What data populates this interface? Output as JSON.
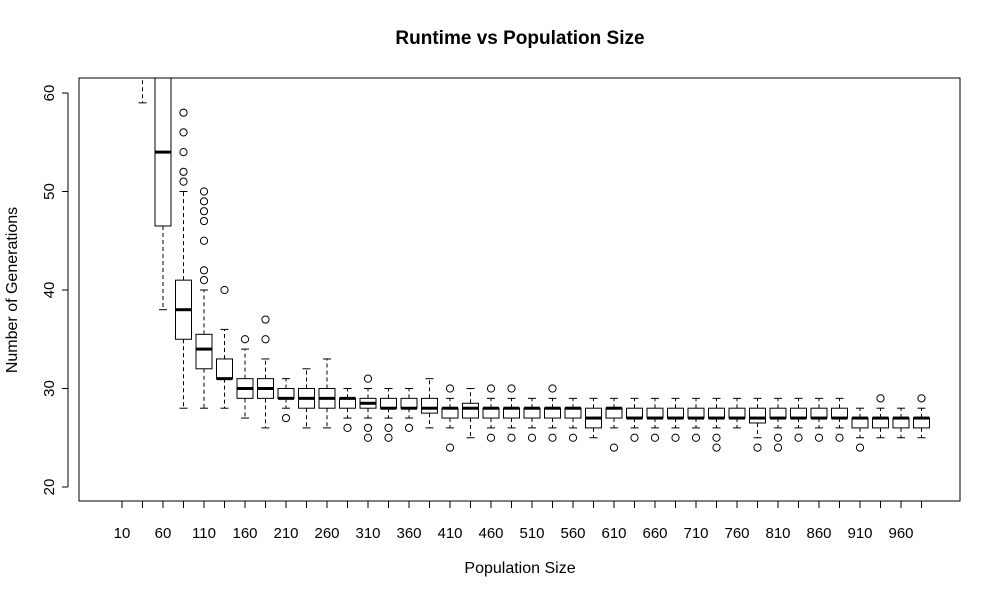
{
  "chart_data": {
    "type": "boxplot",
    "title": "Runtime vs Population Size",
    "xlabel": "Population Size",
    "ylabel": "Number of Generations",
    "ylim": [
      19.5,
      61.5
    ],
    "y_ticks": [
      20,
      30,
      40,
      50,
      60
    ],
    "x_tick_labels": [
      "10",
      "60",
      "110",
      "160",
      "210",
      "260",
      "310",
      "360",
      "410",
      "460",
      "510",
      "560",
      "610",
      "660",
      "710",
      "760",
      "810",
      "860",
      "910",
      "960"
    ],
    "grid": false,
    "categories": [
      10,
      35,
      60,
      85,
      110,
      135,
      160,
      185,
      210,
      235,
      260,
      285,
      310,
      335,
      360,
      385,
      410,
      435,
      460,
      485,
      510,
      535,
      560,
      585,
      610,
      635,
      660,
      685,
      710,
      735,
      760,
      785,
      810,
      835,
      860,
      885,
      910,
      935,
      960,
      985
    ],
    "boxes": [
      null,
      {
        "whisker_low": 59,
        "q1": 62,
        "median": 62,
        "q3": 62,
        "whisker_high": 62,
        "outliers": []
      },
      {
        "whisker_low": 38,
        "q1": 46.5,
        "median": 54,
        "q3": 62,
        "whisker_high": 62,
        "outliers": []
      },
      {
        "whisker_low": 28,
        "q1": 35,
        "median": 38,
        "q3": 41,
        "whisker_high": 50,
        "outliers": [
          51,
          52,
          54,
          56,
          58
        ]
      },
      {
        "whisker_low": 28,
        "q1": 32,
        "median": 34,
        "q3": 35.5,
        "whisker_high": 40,
        "outliers": [
          41,
          42,
          45,
          47,
          48,
          49,
          50
        ]
      },
      {
        "whisker_low": 28,
        "q1": 31,
        "median": 31,
        "q3": 33,
        "whisker_high": 36,
        "outliers": [
          40
        ]
      },
      {
        "whisker_low": 27,
        "q1": 29,
        "median": 30,
        "q3": 31,
        "whisker_high": 34,
        "outliers": [
          35
        ]
      },
      {
        "whisker_low": 26,
        "q1": 29,
        "median": 30,
        "q3": 31,
        "whisker_high": 33,
        "outliers": [
          35,
          37
        ]
      },
      {
        "whisker_low": 28,
        "q1": 29,
        "median": 29,
        "q3": 30,
        "whisker_high": 31,
        "outliers": [
          27
        ]
      },
      {
        "whisker_low": 26,
        "q1": 28,
        "median": 29,
        "q3": 30,
        "whisker_high": 32,
        "outliers": []
      },
      {
        "whisker_low": 26,
        "q1": 28,
        "median": 29,
        "q3": 30,
        "whisker_high": 33,
        "outliers": []
      },
      {
        "whisker_low": 27,
        "q1": 28,
        "median": 29,
        "q3": 29,
        "whisker_high": 30,
        "outliers": [
          26
        ]
      },
      {
        "whisker_low": 27,
        "q1": 28,
        "median": 28.5,
        "q3": 29,
        "whisker_high": 30,
        "outliers": [
          26,
          25,
          31
        ]
      },
      {
        "whisker_low": 27,
        "q1": 28,
        "median": 28,
        "q3": 29,
        "whisker_high": 30,
        "outliers": [
          26,
          25
        ]
      },
      {
        "whisker_low": 27,
        "q1": 28,
        "median": 28,
        "q3": 29,
        "whisker_high": 30,
        "outliers": [
          26
        ]
      },
      {
        "whisker_low": 26,
        "q1": 27.5,
        "median": 28,
        "q3": 29,
        "whisker_high": 31,
        "outliers": []
      },
      {
        "whisker_low": 26,
        "q1": 27,
        "median": 28,
        "q3": 28,
        "whisker_high": 29,
        "outliers": [
          24,
          30
        ]
      },
      {
        "whisker_low": 25,
        "q1": 27,
        "median": 28,
        "q3": 28.5,
        "whisker_high": 30,
        "outliers": []
      },
      {
        "whisker_low": 26,
        "q1": 27,
        "median": 28,
        "q3": 28,
        "whisker_high": 29,
        "outliers": [
          25,
          30
        ]
      },
      {
        "whisker_low": 26,
        "q1": 27,
        "median": 28,
        "q3": 28,
        "whisker_high": 29,
        "outliers": [
          25,
          30
        ]
      },
      {
        "whisker_low": 26,
        "q1": 27,
        "median": 28,
        "q3": 28,
        "whisker_high": 29,
        "outliers": [
          25
        ]
      },
      {
        "whisker_low": 26,
        "q1": 27,
        "median": 28,
        "q3": 28,
        "whisker_high": 29,
        "outliers": [
          25,
          30
        ]
      },
      {
        "whisker_low": 26,
        "q1": 27,
        "median": 28,
        "q3": 28,
        "whisker_high": 29,
        "outliers": [
          25
        ]
      },
      {
        "whisker_low": 25,
        "q1": 26,
        "median": 27,
        "q3": 28,
        "whisker_high": 29,
        "outliers": []
      },
      {
        "whisker_low": 26,
        "q1": 27,
        "median": 28,
        "q3": 28,
        "whisker_high": 29,
        "outliers": [
          24
        ]
      },
      {
        "whisker_low": 26,
        "q1": 27,
        "median": 27,
        "q3": 28,
        "whisker_high": 29,
        "outliers": [
          25
        ]
      },
      {
        "whisker_low": 26,
        "q1": 27,
        "median": 27,
        "q3": 28,
        "whisker_high": 29,
        "outliers": [
          25
        ]
      },
      {
        "whisker_low": 26,
        "q1": 27,
        "median": 27,
        "q3": 28,
        "whisker_high": 29,
        "outliers": [
          25
        ]
      },
      {
        "whisker_low": 26,
        "q1": 27,
        "median": 27,
        "q3": 28,
        "whisker_high": 29,
        "outliers": [
          25
        ]
      },
      {
        "whisker_low": 26,
        "q1": 27,
        "median": 27,
        "q3": 28,
        "whisker_high": 29,
        "outliers": [
          25,
          24
        ]
      },
      {
        "whisker_low": 26,
        "q1": 27,
        "median": 27,
        "q3": 28,
        "whisker_high": 29,
        "outliers": []
      },
      {
        "whisker_low": 25,
        "q1": 26.5,
        "median": 27,
        "q3": 28,
        "whisker_high": 29,
        "outliers": [
          24
        ]
      },
      {
        "whisker_low": 26,
        "q1": 27,
        "median": 27,
        "q3": 28,
        "whisker_high": 29,
        "outliers": [
          25,
          24
        ]
      },
      {
        "whisker_low": 26,
        "q1": 27,
        "median": 27,
        "q3": 28,
        "whisker_high": 29,
        "outliers": [
          25
        ]
      },
      {
        "whisker_low": 26,
        "q1": 27,
        "median": 27,
        "q3": 28,
        "whisker_high": 29,
        "outliers": [
          25
        ]
      },
      {
        "whisker_low": 26,
        "q1": 27,
        "median": 27,
        "q3": 28,
        "whisker_high": 29,
        "outliers": [
          25
        ]
      },
      {
        "whisker_low": 25,
        "q1": 26,
        "median": 27,
        "q3": 27,
        "whisker_high": 28,
        "outliers": [
          24
        ]
      },
      {
        "whisker_low": 25,
        "q1": 26,
        "median": 27,
        "q3": 27,
        "whisker_high": 28,
        "outliers": [
          29
        ]
      },
      {
        "whisker_low": 25,
        "q1": 26,
        "median": 27,
        "q3": 27,
        "whisker_high": 28,
        "outliers": []
      },
      {
        "whisker_low": 25,
        "q1": 26,
        "median": 27,
        "q3": 27,
        "whisker_high": 28,
        "outliers": [
          29
        ]
      }
    ]
  }
}
